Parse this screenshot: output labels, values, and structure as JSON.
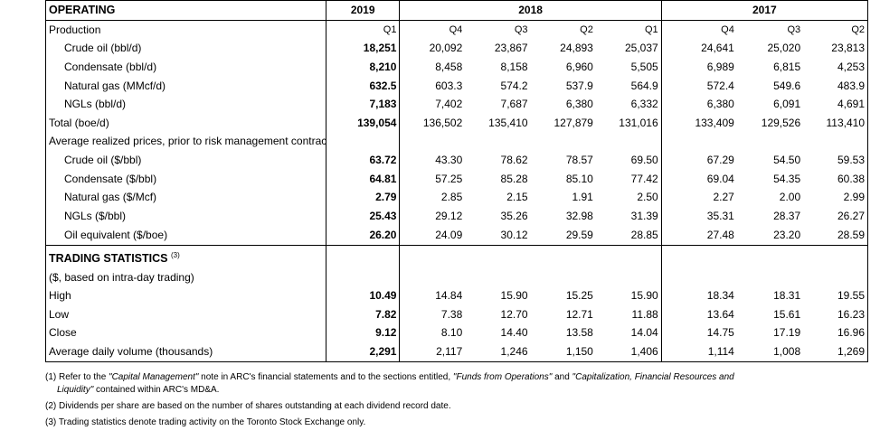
{
  "header": {
    "section": "OPERATING",
    "years": {
      "y2019": "2019",
      "y2018": "2018",
      "y2017": "2017"
    },
    "quarters": [
      "Q1",
      "Q4",
      "Q3",
      "Q2",
      "Q1",
      "Q4",
      "Q3",
      "Q2"
    ]
  },
  "production": {
    "title": "Production",
    "rows": [
      {
        "label": "Crude oil (bbl/d)",
        "values": [
          "18,251",
          "20,092",
          "23,867",
          "24,893",
          "25,037",
          "24,641",
          "25,020",
          "23,813"
        ]
      },
      {
        "label": "Condensate (bbl/d)",
        "values": [
          "8,210",
          "8,458",
          "8,158",
          "6,960",
          "5,505",
          "6,989",
          "6,815",
          "4,253"
        ]
      },
      {
        "label": "Natural gas (MMcf/d)",
        "values": [
          "632.5",
          "603.3",
          "574.2",
          "537.9",
          "564.9",
          "572.4",
          "549.6",
          "483.9"
        ]
      },
      {
        "label": "NGLs (bbl/d)",
        "values": [
          "7,183",
          "7,402",
          "7,687",
          "6,380",
          "6,332",
          "6,380",
          "6,091",
          "4,691"
        ]
      },
      {
        "label": "Total (boe/d)",
        "values": [
          "139,054",
          "136,502",
          "135,410",
          "127,879",
          "131,016",
          "133,409",
          "129,526",
          "113,410"
        ]
      }
    ]
  },
  "prices": {
    "title": "Average realized prices, prior to risk management contracts",
    "rows": [
      {
        "label": "Crude oil ($/bbl)",
        "values": [
          "63.72",
          "43.30",
          "78.62",
          "78.57",
          "69.50",
          "67.29",
          "54.50",
          "59.53"
        ]
      },
      {
        "label": "Condensate ($/bbl)",
        "values": [
          "64.81",
          "57.25",
          "85.28",
          "85.10",
          "77.42",
          "69.04",
          "54.35",
          "60.38"
        ]
      },
      {
        "label": "Natural gas ($/Mcf)",
        "values": [
          "2.79",
          "2.85",
          "2.15",
          "1.91",
          "2.50",
          "2.27",
          "2.00",
          "2.99"
        ]
      },
      {
        "label": "NGLs ($/bbl)",
        "values": [
          "25.43",
          "29.12",
          "35.26",
          "32.98",
          "31.39",
          "35.31",
          "28.37",
          "26.27"
        ]
      },
      {
        "label": "Oil equivalent ($/boe)",
        "values": [
          "26.20",
          "24.09",
          "30.12",
          "29.59",
          "28.85",
          "27.48",
          "23.20",
          "28.59"
        ]
      }
    ]
  },
  "trading": {
    "title": "TRADING STATISTICS",
    "title_note": "(3)",
    "subtitle": "($, based on intra-day trading)",
    "rows": [
      {
        "label": "High",
        "values": [
          "10.49",
          "14.84",
          "15.90",
          "15.25",
          "15.90",
          "18.34",
          "18.31",
          "19.55"
        ]
      },
      {
        "label": "Low",
        "values": [
          "7.82",
          "7.38",
          "12.70",
          "12.71",
          "11.88",
          "13.64",
          "15.61",
          "16.23"
        ]
      },
      {
        "label": "Close",
        "values": [
          "9.12",
          "8.10",
          "14.40",
          "13.58",
          "14.04",
          "14.75",
          "17.19",
          "16.96"
        ]
      },
      {
        "label": "Average daily volume (thousands)",
        "values": [
          "2,291",
          "2,117",
          "1,246",
          "1,150",
          "1,406",
          "1,114",
          "1,008",
          "1,269"
        ]
      }
    ]
  },
  "footnotes": {
    "n1_a": "(1) Refer to the ",
    "n1_b": "\"Capital Management\"",
    "n1_c": " note in ARC's financial statements and to the sections entitled, ",
    "n1_d": "\"Funds from Operations\"",
    "n1_e": " and ",
    "n1_f": "\"Capitalization, Financial Resources and",
    "n1_g": "Liquidity\"",
    "n1_h": " contained within ARC's MD&A.",
    "n2": "(2) Dividends per share are based on the number of shares outstanding at each dividend record date.",
    "n3": "(3) Trading statistics denote trading activity on the Toronto Stock Exchange only."
  }
}
